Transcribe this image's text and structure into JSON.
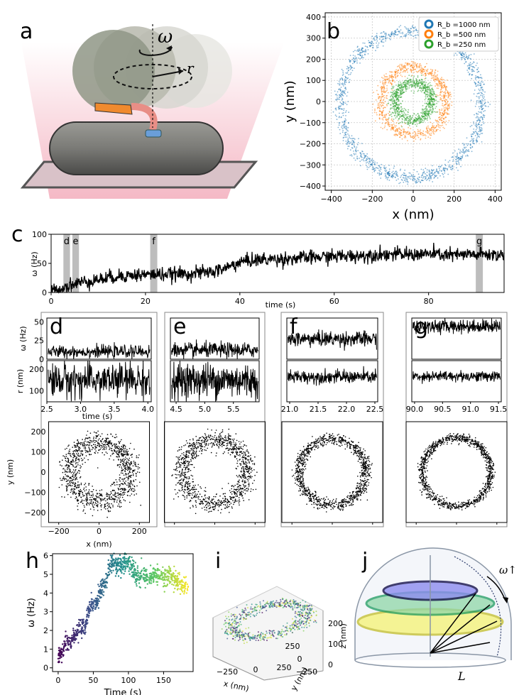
{
  "panels": {
    "a": "a",
    "b": "b",
    "c": "c",
    "d": "d",
    "e": "e",
    "f": "f",
    "g": "g",
    "h": "h",
    "i": "i",
    "j": "j"
  },
  "schematic_a": {
    "omega": "ω",
    "r": "r"
  },
  "schematic_j": {
    "omega_label": "ω↑",
    "L": "L"
  },
  "colors": {
    "blue": "#1f77b4",
    "orange": "#ff7f0e",
    "green": "#2ca02c",
    "trace": "#000000",
    "shade": "#bdbdbd"
  },
  "chart_data": [
    {
      "id": "b",
      "type": "scatter",
      "xlabel": "x (nm)",
      "ylabel": "y (nm)",
      "xlim": [
        -430,
        430
      ],
      "ylim": [
        -420,
        420
      ],
      "xticks": [
        -400,
        -200,
        0,
        200,
        400
      ],
      "yticks": [
        -400,
        -300,
        -200,
        -100,
        0,
        100,
        200,
        300,
        400
      ],
      "grid": true,
      "legend_position": "top-right",
      "series": [
        {
          "name": "$R_b = 1000$ nm",
          "legend": "R_b =1000 nm",
          "kind": "ring",
          "center": [
            -10,
            -15
          ],
          "radius": 345,
          "width": 50,
          "color": "#1f77b4"
        },
        {
          "name": "$R_b = 500$ nm",
          "legend": "R_b =500 nm",
          "kind": "ring",
          "center": [
            0,
            0
          ],
          "radius": 160,
          "width": 50,
          "color": "#ff7f0e"
        },
        {
          "name": "$R_b = 250$ nm",
          "legend": "R_b =250 nm",
          "kind": "ring",
          "center": [
            0,
            0
          ],
          "radius": 90,
          "width": 50,
          "color": "#2ca02c"
        }
      ]
    },
    {
      "id": "c",
      "type": "line",
      "xlabel": "time (s)",
      "ylabel": "ω (Hz)",
      "xlim": [
        0,
        96
      ],
      "ylim": [
        0,
        100
      ],
      "xticks": [
        0,
        20,
        40,
        60,
        80
      ],
      "yticks": [
        0,
        50,
        100
      ],
      "x": [
        0,
        2,
        3,
        5,
        8,
        10,
        14,
        18,
        22,
        26,
        30,
        34,
        37,
        40,
        42,
        46,
        50,
        55,
        60,
        65,
        70,
        75,
        80,
        85,
        90,
        96
      ],
      "y": [
        2,
        6,
        10,
        15,
        20,
        22,
        28,
        30,
        31,
        31,
        33,
        35,
        42,
        52,
        55,
        57,
        58,
        60,
        62,
        63,
        66,
        65,
        66,
        64,
        65,
        65
      ],
      "noise": 6,
      "highlights": [
        {
          "label": "d",
          "start": 2.6,
          "end": 4.0
        },
        {
          "label": "e",
          "start": 4.5,
          "end": 5.9
        },
        {
          "label": "f",
          "start": 21.0,
          "end": 22.5
        },
        {
          "label": "g",
          "start": 90.0,
          "end": 91.5
        }
      ]
    },
    {
      "id": "d",
      "omega": {
        "ylabel": "ω (Hz)",
        "ylim": [
          0,
          55
        ],
        "yticks": [
          0,
          25,
          50
        ],
        "mean": 10,
        "noise": 4
      },
      "radius": {
        "ylabel": "r (nm)",
        "ylim": [
          50,
          240
        ],
        "yticks": [
          100,
          200
        ],
        "mean": 150,
        "noise": 40
      },
      "time": {
        "xlabel": "time (s)",
        "xlim": [
          2.5,
          4.05
        ],
        "xticks": [
          2.5,
          3.0,
          3.5,
          4.0
        ]
      },
      "trajectory": {
        "xlabel": "x (nm)",
        "ylabel": "y (nm)",
        "xlim": [
          -250,
          250
        ],
        "ylim": [
          -250,
          250
        ],
        "xticks": [
          -200,
          0,
          200
        ],
        "yticks": [
          -200,
          -100,
          0,
          100,
          200
        ],
        "ring_radius": 150,
        "ring_width": 80
      }
    },
    {
      "id": "e",
      "omega": {
        "ylim": [
          0,
          55
        ],
        "mean": 12,
        "noise": 5
      },
      "radius": {
        "ylim": [
          50,
          240
        ],
        "mean": 150,
        "noise": 40
      },
      "time": {
        "xlim": [
          4.4,
          5.95
        ],
        "xticks": [
          4.5,
          5.0,
          5.5
        ]
      },
      "trajectory": {
        "xlim": [
          -250,
          250
        ],
        "ylim": [
          -250,
          250
        ],
        "ring_radius": 160,
        "ring_width": 70
      }
    },
    {
      "id": "f",
      "omega": {
        "ylim": [
          0,
          55
        ],
        "mean": 27,
        "noise": 5
      },
      "radius": {
        "ylim": [
          50,
          240
        ],
        "mean": 165,
        "noise": 15
      },
      "time": {
        "xlim": [
          20.95,
          22.55
        ],
        "xticks": [
          21.0,
          21.5,
          22.0,
          22.5
        ]
      },
      "trajectory": {
        "xlim": [
          -250,
          250
        ],
        "ylim": [
          -250,
          250
        ],
        "ring_radius": 165,
        "ring_width": 40
      }
    },
    {
      "id": "g",
      "omega": {
        "ylim": [
          0,
          75
        ],
        "mean": 60,
        "noise": 6
      },
      "radius": {
        "ylim": [
          50,
          240
        ],
        "mean": 168,
        "noise": 12
      },
      "time": {
        "xlim": [
          89.95,
          91.55
        ],
        "xticks": [
          90.0,
          90.5,
          91.0,
          91.5
        ]
      },
      "trajectory": {
        "xlim": [
          -250,
          250
        ],
        "ylim": [
          -250,
          250
        ],
        "ring_radius": 170,
        "ring_width": 30
      }
    },
    {
      "id": "h",
      "type": "scatter",
      "xlabel": "Time (s)",
      "ylabel": "ω (Hz)",
      "xlim": [
        -8,
        192
      ],
      "ylim": [
        -0.2,
        6.1
      ],
      "xticks": [
        0,
        50,
        100,
        150
      ],
      "yticks": [
        0,
        1,
        2,
        3,
        4,
        5,
        6
      ],
      "colormap": "viridis",
      "x": [
        0,
        8,
        10,
        18,
        20,
        28,
        30,
        38,
        40,
        48,
        52,
        58,
        62,
        68,
        72,
        80,
        90,
        100,
        110,
        120,
        130,
        140,
        150,
        160,
        170,
        180,
        185
      ],
      "y": [
        0.6,
        1.0,
        1.4,
        1.2,
        1.6,
        2.0,
        2.3,
        2.1,
        2.6,
        3.5,
        3.3,
        3.7,
        4.3,
        4.5,
        5.4,
        5.5,
        5.5,
        5.6,
        5.0,
        4.9,
        4.8,
        5.0,
        4.8,
        5.0,
        4.6,
        4.4,
        4.3
      ],
      "noise": 0.25
    },
    {
      "id": "i",
      "type": "scatter3d",
      "xlabel": "x (nm)",
      "ylabel": "y (nm)",
      "zlabel": "z (nm)",
      "xticks": [
        -250,
        0,
        250
      ],
      "yticks": [
        -250,
        0,
        250
      ],
      "zticks": [
        0,
        100,
        200
      ],
      "colormap": "viridis"
    }
  ]
}
